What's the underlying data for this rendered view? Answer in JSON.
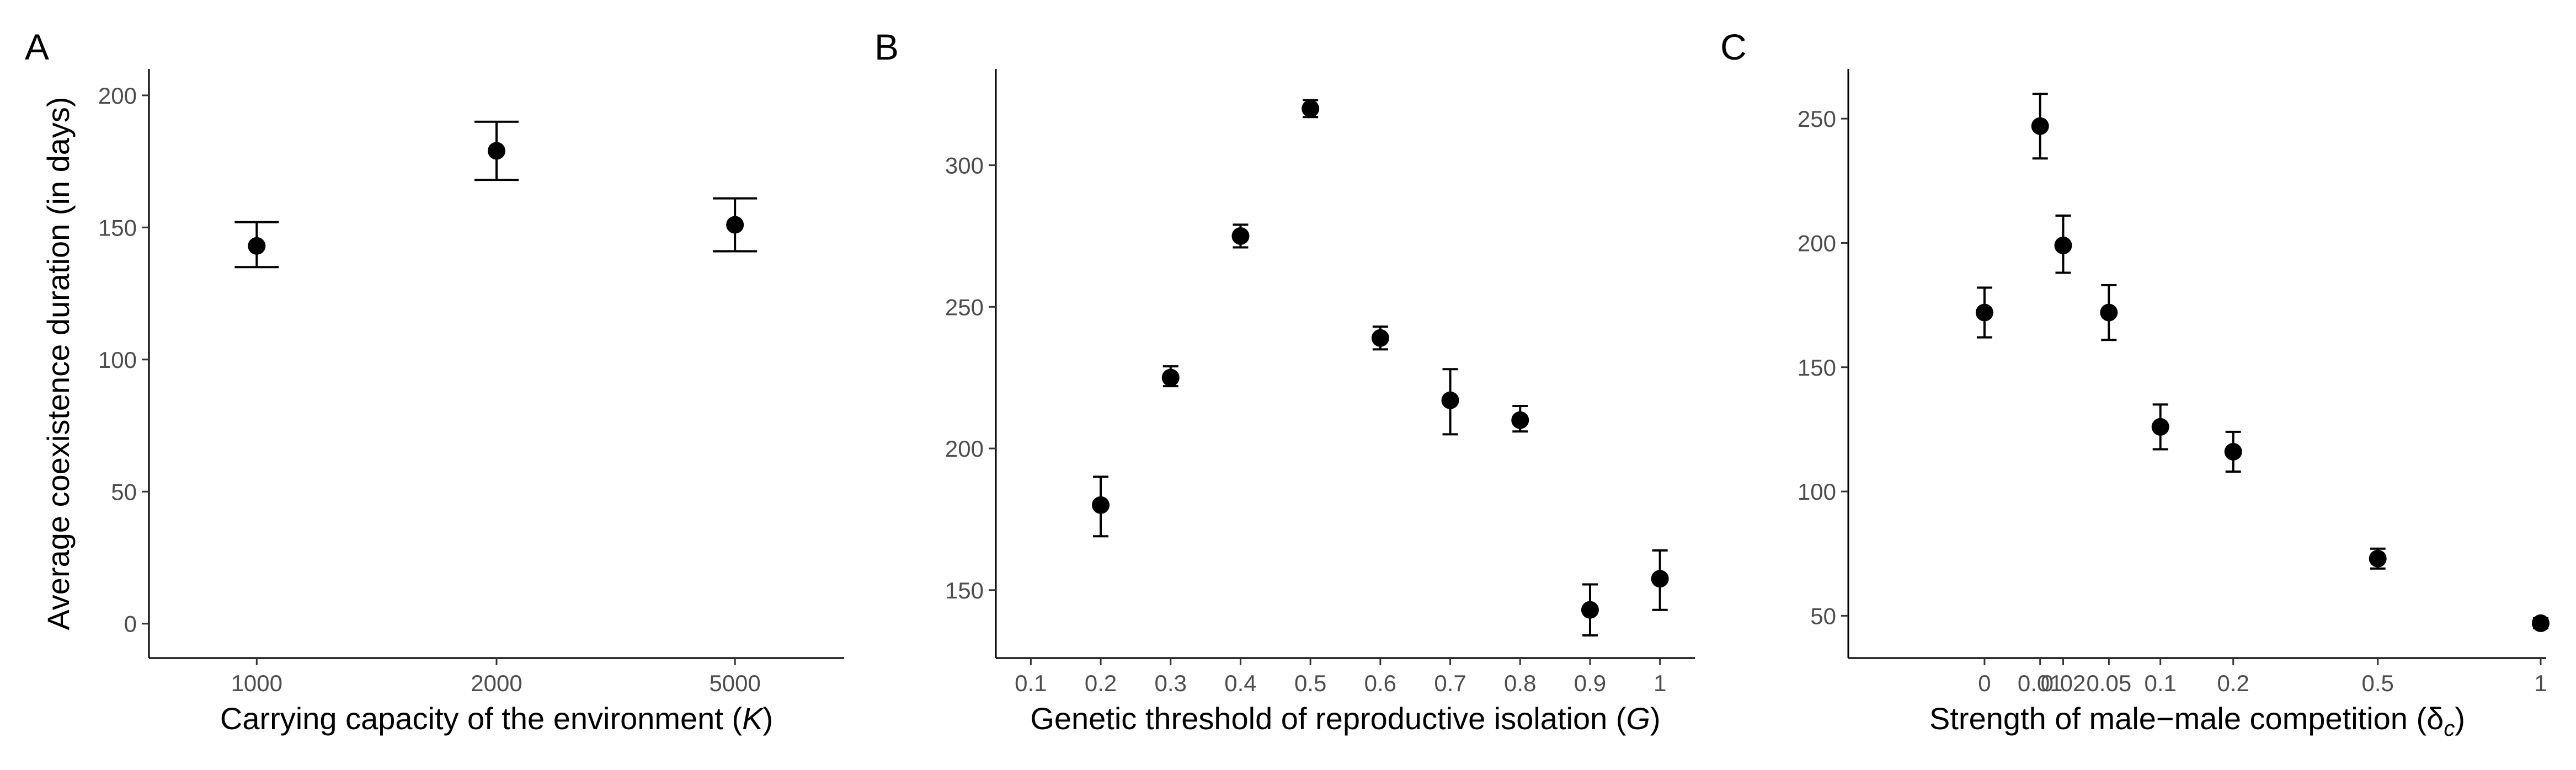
{
  "chart_data": [
    {
      "type": "scatter",
      "panel": "A",
      "xlabel": "Carrying capacity of the environment (K)",
      "xlabel_parts": {
        "prefix": "Carrying capacity of the environment (",
        "var": "K",
        "suffix": ")"
      },
      "ylabel": "Average coexistence duration (in days)",
      "x_scale": "categorical",
      "categories": [
        "1000",
        "2000",
        "5000"
      ],
      "y": [
        143,
        179,
        151
      ],
      "err_low": [
        135,
        168,
        141
      ],
      "err_high": [
        152,
        190,
        161
      ],
      "ylim": [
        -13,
        210
      ],
      "yticks": [
        0,
        50,
        100,
        150,
        200
      ],
      "grid": false
    },
    {
      "type": "scatter",
      "panel": "B",
      "xlabel": "Genetic threshold of reproductive isolation (G)",
      "xlabel_parts": {
        "prefix": "Genetic threshold of reproductive isolation (",
        "var": "G",
        "suffix": ")"
      },
      "ylabel": "",
      "x_scale": "linear",
      "xlim": [
        0.05,
        1.05
      ],
      "xticks": [
        "0.1",
        "0.2",
        "0.3",
        "0.4",
        "0.5",
        "0.6",
        "0.7",
        "0.8",
        "0.9",
        "1"
      ],
      "x": [
        0.2,
        0.3,
        0.4,
        0.5,
        0.6,
        0.7,
        0.8,
        0.9,
        1.0
      ],
      "y": [
        180,
        225,
        275,
        320,
        239,
        217,
        210,
        143,
        154
      ],
      "err_low": [
        169,
        222,
        271,
        317,
        235,
        205,
        206,
        134,
        143
      ],
      "err_high": [
        190,
        229,
        279,
        323,
        243,
        228,
        215,
        152,
        164
      ],
      "ylim": [
        126,
        334
      ],
      "yticks": [
        150,
        200,
        250,
        300
      ],
      "grid": false
    },
    {
      "type": "scatter",
      "panel": "C",
      "xlabel": "Strength of male−male competition (δc)",
      "xlabel_parts": {
        "prefix": "Strength of male−male competition (",
        "var": "δ",
        "sub": "c",
        "suffix": ")"
      },
      "ylabel": "",
      "x_scale": "sqrt",
      "xlim": [
        -0.06,
        1.02
      ],
      "xticks": [
        "0",
        "0.01",
        "0.02",
        "0.05",
        "0.1",
        "0.2",
        "0.5",
        "1"
      ],
      "x": [
        0,
        0.01,
        0.02,
        0.05,
        0.1,
        0.2,
        0.5,
        1
      ],
      "y": [
        172,
        247,
        199,
        172,
        126,
        116,
        73,
        47
      ],
      "err_low": [
        162,
        234,
        188,
        161,
        117,
        108,
        69,
        45
      ],
      "err_high": [
        182,
        260,
        211,
        183,
        135,
        124,
        77,
        49
      ],
      "ylim": [
        33,
        270
      ],
      "yticks": [
        50,
        100,
        150,
        200,
        250
      ],
      "grid": false
    }
  ]
}
